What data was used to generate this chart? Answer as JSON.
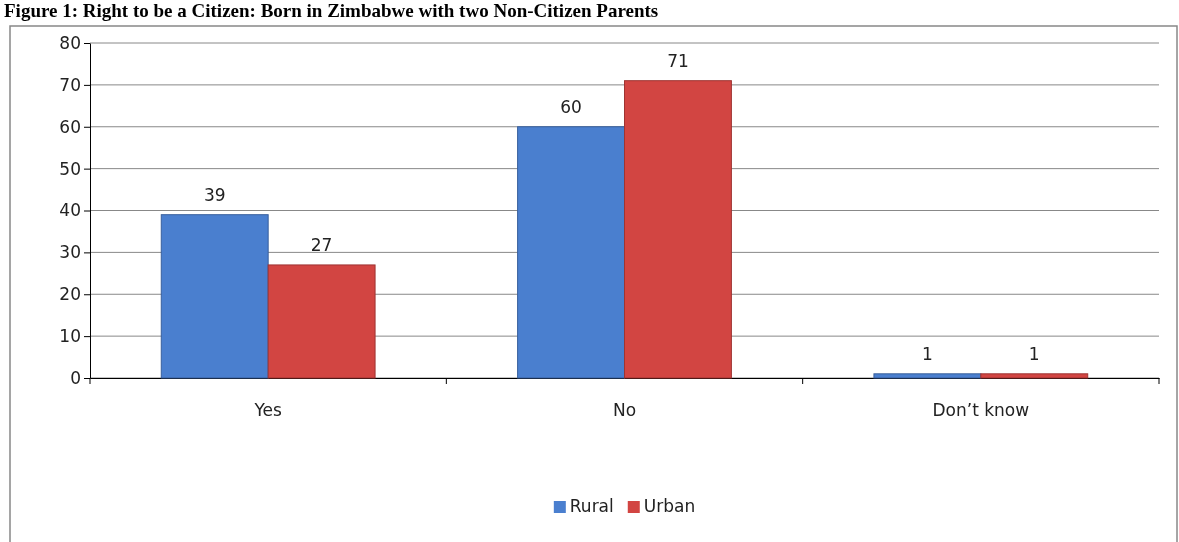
{
  "chart_data": {
    "type": "bar",
    "title": "Figure 1: Right to be a Citizen: Born in Zimbabwe with two Non-Citizen Parents",
    "categories": [
      "Yes",
      "No",
      "Don’t know"
    ],
    "series": [
      {
        "name": "Rural",
        "color": "#4a7fcf",
        "values": [
          39,
          60,
          1
        ]
      },
      {
        "name": "Urban",
        "color": "#d24542",
        "values": [
          27,
          71,
          1
        ]
      }
    ],
    "ylim": [
      0,
      80
    ],
    "yticks": [
      0,
      10,
      20,
      30,
      40,
      50,
      60,
      70,
      80
    ],
    "grid": "y",
    "legend": "bottom",
    "data_labels": true
  }
}
